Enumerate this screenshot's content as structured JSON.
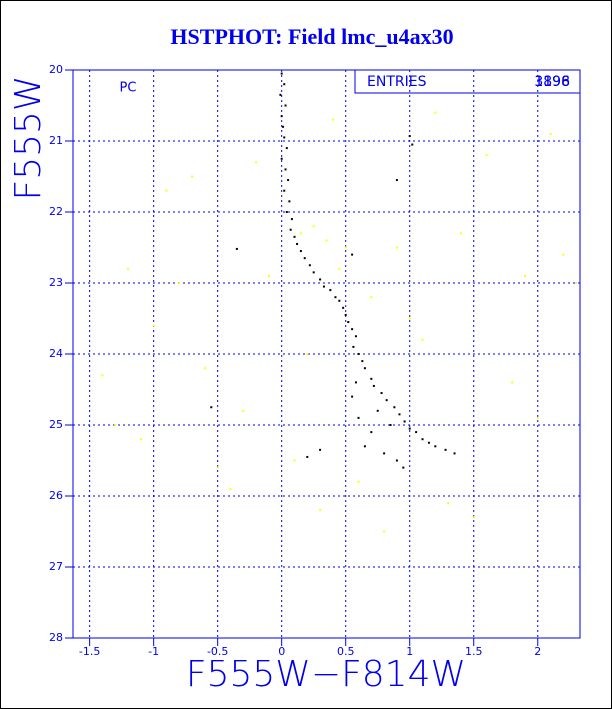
{
  "chart_data": {
    "type": "scatter",
    "title": "HSTPHOT: Field lmc_u4ax30",
    "x_label": "F555W−F814W",
    "y_label": "F555W",
    "annotation": "PC",
    "stats_label": "ENTRIES",
    "entries": [
      3896,
      1198
    ],
    "xlim": [
      -1.63,
      2.33
    ],
    "ylim": [
      28,
      20
    ],
    "xticks": [
      -1.5,
      -1,
      -0.5,
      0,
      0.5,
      1,
      1.5,
      2
    ],
    "yticks": [
      20,
      21,
      22,
      23,
      24,
      25,
      26,
      27,
      28
    ],
    "grid": true,
    "series": [
      {
        "color": "#ffff00",
        "x": [
          -1.2,
          -0.8,
          -0.2,
          0.4,
          1.2,
          1.6,
          2.1,
          2.2,
          -1.0,
          -0.6,
          0.9,
          1.4,
          1.9,
          2.3,
          -1.4,
          -0.3,
          0.2,
          0.7,
          1.1,
          1.8,
          -1.1,
          -0.5,
          0.1,
          0.6,
          1.3,
          2.0,
          -0.9,
          -0.1,
          0.5,
          1.0,
          -1.3,
          -0.7,
          0.3,
          0.8,
          1.5,
          -0.4,
          0.15,
          0.35,
          0.45,
          0.25
        ],
        "values": [
          22.8,
          23.0,
          21.3,
          20.7,
          20.6,
          21.2,
          20.9,
          22.6,
          23.6,
          24.2,
          22.5,
          22.3,
          22.9,
          23.0,
          24.3,
          24.8,
          24.0,
          23.2,
          23.8,
          24.4,
          25.2,
          25.6,
          25.5,
          25.8,
          26.1,
          24.9,
          21.7,
          22.9,
          22.5,
          23.5,
          25.0,
          21.5,
          26.2,
          26.5,
          26.3,
          25.9,
          22.3,
          22.4,
          22.8,
          22.2
        ]
      },
      {
        "color": "#000000",
        "x": [
          0.0,
          0.02,
          -0.01,
          0.03,
          0.0,
          0.01,
          0.02,
          0.04,
          0.0,
          0.03,
          0.05,
          0.02,
          0.06,
          0.04,
          0.08,
          0.07,
          0.1,
          0.12,
          0.15,
          0.18,
          0.22,
          0.25,
          0.3,
          0.33,
          0.38,
          0.42,
          0.45,
          0.48,
          0.5,
          0.52,
          0.55,
          0.58,
          0.56,
          0.6,
          0.63,
          0.65,
          0.7,
          0.72,
          0.78,
          0.82,
          0.88,
          0.92,
          0.96,
          1.0,
          1.05,
          1.1,
          1.15,
          1.2,
          1.28,
          1.35,
          0.55,
          0.6,
          0.7,
          0.75,
          0.65,
          0.8,
          0.9,
          0.95,
          0.58,
          0.85,
          1.0,
          1.02,
          0.9,
          -0.35,
          -0.55,
          0.2,
          0.3,
          0.55
        ],
        "values": [
          20.05,
          20.2,
          20.35,
          20.5,
          20.65,
          20.8,
          20.95,
          21.1,
          21.25,
          21.4,
          21.55,
          21.7,
          21.85,
          22.0,
          22.1,
          22.25,
          22.35,
          22.45,
          22.55,
          22.65,
          22.75,
          22.85,
          22.95,
          23.05,
          23.1,
          23.2,
          23.25,
          23.35,
          23.45,
          23.55,
          23.65,
          23.75,
          23.9,
          24.0,
          24.1,
          24.2,
          24.35,
          24.45,
          24.55,
          24.65,
          24.75,
          24.85,
          24.95,
          25.05,
          25.1,
          25.2,
          25.25,
          25.3,
          25.35,
          25.4,
          24.6,
          24.9,
          25.1,
          24.8,
          25.3,
          25.4,
          25.5,
          25.6,
          24.4,
          25.0,
          20.93,
          21.05,
          21.55,
          22.52,
          24.75,
          25.45,
          25.35,
          22.6
        ]
      }
    ]
  }
}
